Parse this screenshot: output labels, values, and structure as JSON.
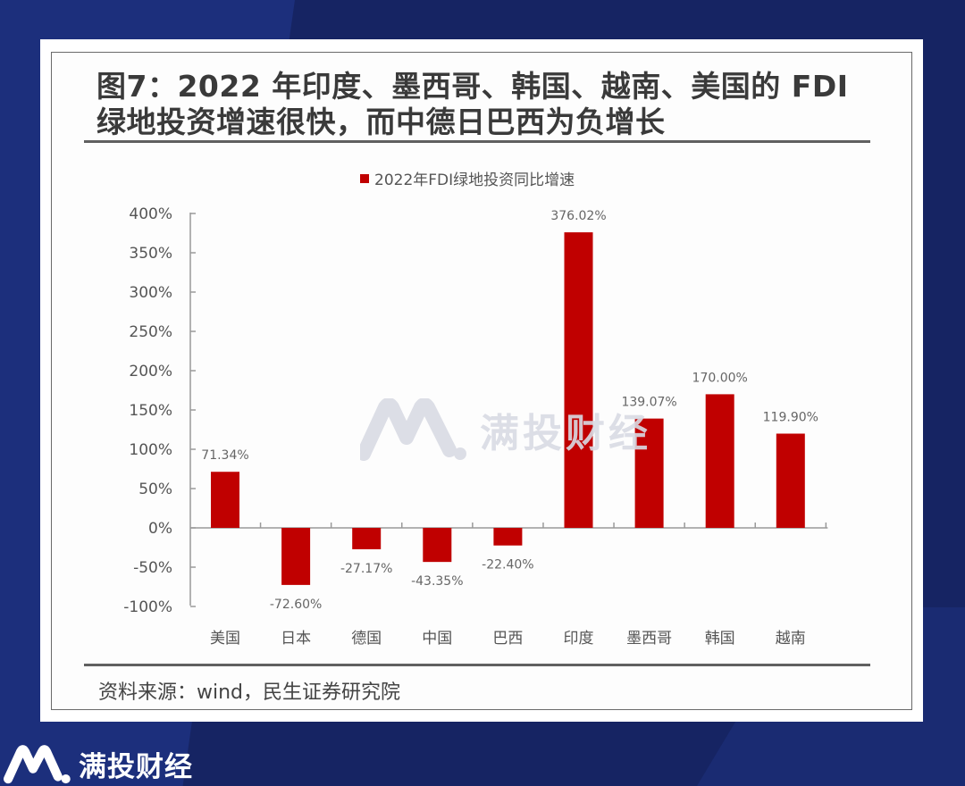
{
  "page": {
    "title_line1": "图7：2022 年印度、墨西哥、韩国、越南、美国的 FDI",
    "title_line2": "绿地投资增速很快，而中德日巴西为负增长",
    "source": "资料来源：wind，民生证券研究院",
    "watermark_text": "满投财经",
    "footer_brand": "满投财经",
    "colors": {
      "bar": "#c00000",
      "background": "#162463",
      "axis": "#9a9a9a",
      "text": "#555555"
    }
  },
  "chart_data": {
    "type": "bar",
    "title": "图7：2022 年印度、墨西哥、韩国、越南、美国的 FDI 绿地投资增速很快，而中德日巴西为负增长",
    "legend": [
      "2022年FDI绿地投资同比增速"
    ],
    "legend_position": "top",
    "categories": [
      "美国",
      "日本",
      "德国",
      "中国",
      "巴西",
      "印度",
      "墨西哥",
      "韩国",
      "越南"
    ],
    "series": [
      {
        "name": "2022年FDI绿地投资同比增速",
        "values": [
          71.34,
          -72.6,
          -27.17,
          -43.35,
          -22.4,
          376.02,
          139.07,
          170.0,
          119.9
        ]
      }
    ],
    "data_labels": [
      "71.34%",
      "-72.60%",
      "-27.17%",
      "-43.35%",
      "-22.40%",
      "376.02%",
      "139.07%",
      "170.00%",
      "119.90%"
    ],
    "xlabel": "",
    "ylabel": "",
    "ylim": [
      -100,
      400
    ],
    "y_ticks": [
      "400%",
      "350%",
      "300%",
      "250%",
      "200%",
      "150%",
      "100%",
      "50%",
      "0%",
      "-50%",
      "-100%"
    ],
    "grid": false
  }
}
